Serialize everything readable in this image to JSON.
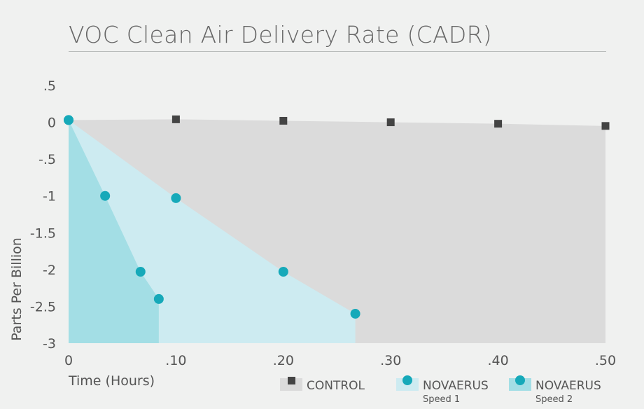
{
  "colors": {
    "background": "#f0f1f0",
    "control_fill": "#dbdbdb",
    "speed1_fill": "#cdebf1",
    "speed2_fill": "#a3dee5",
    "marker_teal": "#16a9b9",
    "marker_control": "#444444"
  },
  "chart_data": {
    "type": "scatter",
    "title": "VOC Clean Air Delivery Rate (CADR)",
    "xlabel": "Time (Hours)",
    "ylabel": "Parts Per Billion",
    "xlim": [
      0,
      0.5
    ],
    "ylim": [
      -3,
      0.5
    ],
    "x_ticks": [
      0,
      0.1,
      0.2,
      0.3,
      0.4,
      0.5
    ],
    "x_tick_labels": [
      "0",
      ".10",
      ".20",
      ".30",
      ".40",
      ".50"
    ],
    "y_ticks": [
      0.5,
      0,
      -0.5,
      -1,
      -1.5,
      -2,
      -2.5,
      -3
    ],
    "y_tick_labels": [
      ".5",
      "0",
      "-.5",
      "-1",
      "-1.5",
      "-2",
      "-2.5",
      "-3"
    ],
    "grid": false,
    "legend_position": "bottom-right",
    "series": [
      {
        "name": "CONTROL",
        "subname": "",
        "marker": "square",
        "color": "#444444",
        "fill": "#dbdbdb",
        "points": [
          [
            0.1,
            0.04
          ],
          [
            0.2,
            0.02
          ],
          [
            0.3,
            0.0
          ],
          [
            0.4,
            -0.02
          ],
          [
            0.5,
            -0.05
          ]
        ]
      },
      {
        "name": "NOVAERUS",
        "subname": "Speed 1",
        "marker": "circle",
        "color": "#16a9b9",
        "fill": "#cdebf1",
        "points": [
          [
            0,
            0.03
          ],
          [
            0.1,
            -1.03
          ],
          [
            0.2,
            -2.03
          ],
          [
            0.267,
            -2.6
          ]
        ]
      },
      {
        "name": "NOVAERUS",
        "subname": "Speed 2",
        "marker": "circle",
        "color": "#16a9b9",
        "fill": "#a3dee5",
        "points": [
          [
            0,
            0.03
          ],
          [
            0.034,
            -1.0
          ],
          [
            0.067,
            -2.03
          ],
          [
            0.084,
            -2.4
          ]
        ]
      }
    ]
  }
}
